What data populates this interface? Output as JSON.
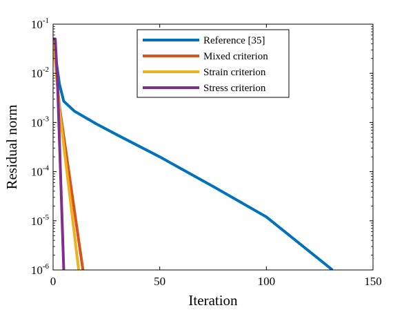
{
  "chart_data": {
    "type": "line",
    "title": "",
    "xlabel": "Iteration",
    "ylabel": "Residual norm",
    "xlim": [
      0,
      150
    ],
    "ylim": [
      1e-06,
      0.1
    ],
    "yscale": "log",
    "grid": false,
    "legend_position": "top-center",
    "x_ticks": [
      {
        "value": 0,
        "label": "0"
      },
      {
        "value": 50,
        "label": "50"
      },
      {
        "value": 100,
        "label": "100"
      },
      {
        "value": 150,
        "label": "150"
      }
    ],
    "y_ticks": [
      {
        "value": 1e-06,
        "base": "10",
        "exp": "-6"
      },
      {
        "value": 1e-05,
        "base": "10",
        "exp": "-5"
      },
      {
        "value": 0.0001,
        "base": "10",
        "exp": "-4"
      },
      {
        "value": 0.001,
        "base": "10",
        "exp": "-3"
      },
      {
        "value": 0.01,
        "base": "10",
        "exp": "-2"
      },
      {
        "value": 0.1,
        "base": "10",
        "exp": "-1"
      }
    ],
    "series": [
      {
        "name": "Reference [35]",
        "color": "#0072BD",
        "x": [
          0,
          3,
          4,
          5,
          10,
          20,
          30,
          50,
          75,
          100,
          131
        ],
        "y": [
          0.05,
          0.006,
          0.004,
          0.0027,
          0.0017,
          0.00095,
          0.00056,
          0.0002,
          5e-05,
          1.2e-05,
          1e-06
        ]
      },
      {
        "name": "Mixed criterion",
        "color": "#D95319",
        "x": [
          0,
          2,
          3,
          14
        ],
        "y": [
          0.05,
          0.006,
          0.0021,
          1e-06
        ]
      },
      {
        "name": "Strain criterion",
        "color": "#EDB120",
        "x": [
          0,
          2,
          3,
          12
        ],
        "y": [
          0.05,
          0.006,
          0.0018,
          1e-06
        ]
      },
      {
        "name": "Stress criterion",
        "color": "#7E2F8E",
        "x": [
          0,
          1,
          2,
          5
        ],
        "y": [
          0.05,
          0.05,
          0.008,
          1e-06
        ]
      }
    ]
  }
}
